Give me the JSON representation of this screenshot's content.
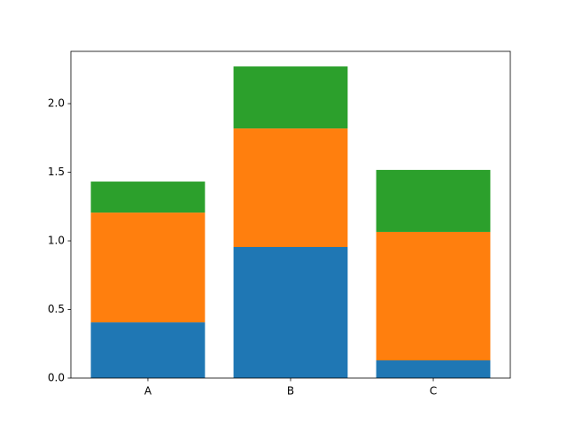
{
  "chart_data": {
    "type": "stacked_bar",
    "categories": [
      "A",
      "B",
      "C"
    ],
    "series": [
      {
        "color": "#1f77b4",
        "values": [
          0.406,
          0.955,
          0.129
        ]
      },
      {
        "color": "#ff7f0e",
        "values": [
          0.8,
          0.864,
          0.936
        ]
      },
      {
        "color": "#2ca02c",
        "values": [
          0.226,
          0.452,
          0.452
        ]
      }
    ],
    "ylim": [
      0,
      2.381
    ],
    "yticks": [
      {
        "value": 0,
        "label": "0.0"
      },
      0.5,
      {
        "value": 1,
        "label": "1.0"
      },
      1.5,
      {
        "value": 2,
        "label": "2.0"
      }
    ],
    "grid": false
  }
}
